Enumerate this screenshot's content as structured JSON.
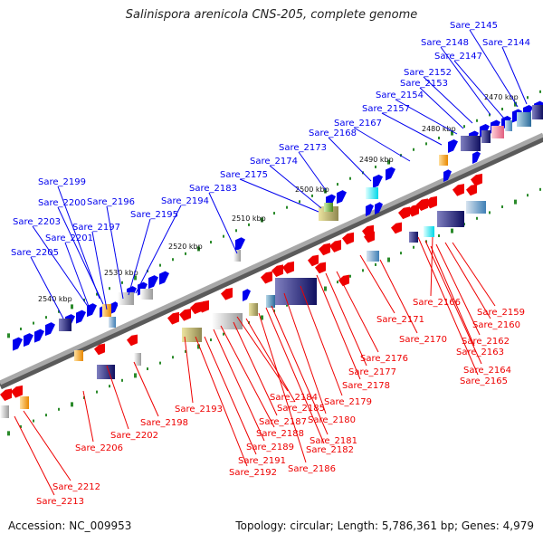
{
  "title": "Salinispora arenicola CNS-205, complete genome",
  "footer": {
    "accession": "Accession: NC_009953",
    "summary": "Topology: circular; Length: 5,786,361 bp; Genes: 4,979"
  },
  "ticks": [
    "2470 kbp",
    "2480 kbp",
    "2490 kbp",
    "2500 kbp",
    "2510 kbp",
    "2520 kbp",
    "2530 kbp",
    "2540 kbp"
  ],
  "genes_forward": [
    "Sare_2145",
    "Sare_2148",
    "Sare_2144",
    "Sare_2147",
    "Sare_2152",
    "Sare_2153",
    "Sare_2154",
    "Sare_2157",
    "Sare_2167",
    "Sare_2168",
    "Sare_2173",
    "Sare_2174",
    "Sare_2175",
    "Sare_2183",
    "Sare_2194",
    "Sare_2196",
    "Sare_2195",
    "Sare_2199",
    "Sare_2200",
    "Sare_2197",
    "Sare_2203",
    "Sare_2201",
    "Sare_2205"
  ],
  "genes_reverse": [
    "Sare_2166",
    "Sare_2159",
    "Sare_2171",
    "Sare_2160",
    "Sare_2170",
    "Sare_2162",
    "Sare_2163",
    "Sare_2176",
    "Sare_2164",
    "Sare_2177",
    "Sare_2165",
    "Sare_2178",
    "Sare_2184",
    "Sare_2179",
    "Sare_2185",
    "Sare_2193",
    "Sare_2180",
    "Sare_2187",
    "Sare_2198",
    "Sare_2188",
    "Sare_2202",
    "Sare_2181",
    "Sare_2189",
    "Sare_2182",
    "Sare_2206",
    "Sare_2191",
    "Sare_2186",
    "Sare_2192",
    "Sare_2212",
    "Sare_2213"
  ],
  "colors": {
    "forward": "#0000ee",
    "reverse": "#ee0000",
    "backbone": "#999999"
  }
}
